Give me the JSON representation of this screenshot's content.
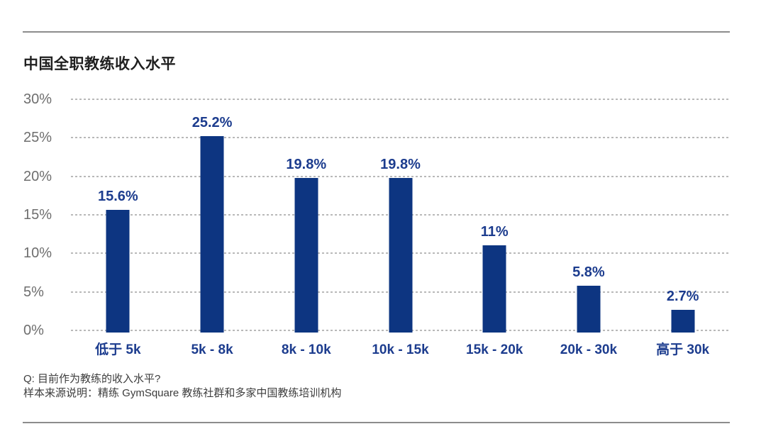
{
  "page": {
    "title": "中国全职教练收入水平",
    "footer": {
      "question": "Q: 目前作为教练的收入水平?",
      "source": "样本来源说明：精练 GymSquare 教练社群和多家中国教练培训机构"
    }
  },
  "colors": {
    "bar": "#0d3581",
    "value_label": "#1c3c8e",
    "axis_text": "#6e6e6e",
    "gridline": "#b9b9b9",
    "rule": "#8c8c8c"
  },
  "chart_data": {
    "type": "bar",
    "title": "中国全职教练收入水平",
    "categories": [
      "低于 5k",
      "5k - 8k",
      "8k - 10k",
      "10k - 15k",
      "15k - 20k",
      "20k - 30k",
      "高于 30k"
    ],
    "values": [
      15.6,
      25.2,
      19.8,
      19.8,
      11,
      5.8,
      2.7
    ],
    "value_labels": [
      "15.6%",
      "25.2%",
      "19.8%",
      "19.8%",
      "11%",
      "5.8%",
      "2.7%"
    ],
    "ylim": [
      0,
      30
    ],
    "ytick_values": [
      30,
      25,
      20,
      15,
      10,
      5,
      0
    ],
    "ytick_labels": [
      "30%",
      "25%",
      "20%",
      "15%",
      "10%",
      "5%",
      "0%"
    ],
    "grid": "horizontal-dashed",
    "legend": "none",
    "bar_color": "#0d3581",
    "xlabel": "",
    "ylabel": ""
  }
}
